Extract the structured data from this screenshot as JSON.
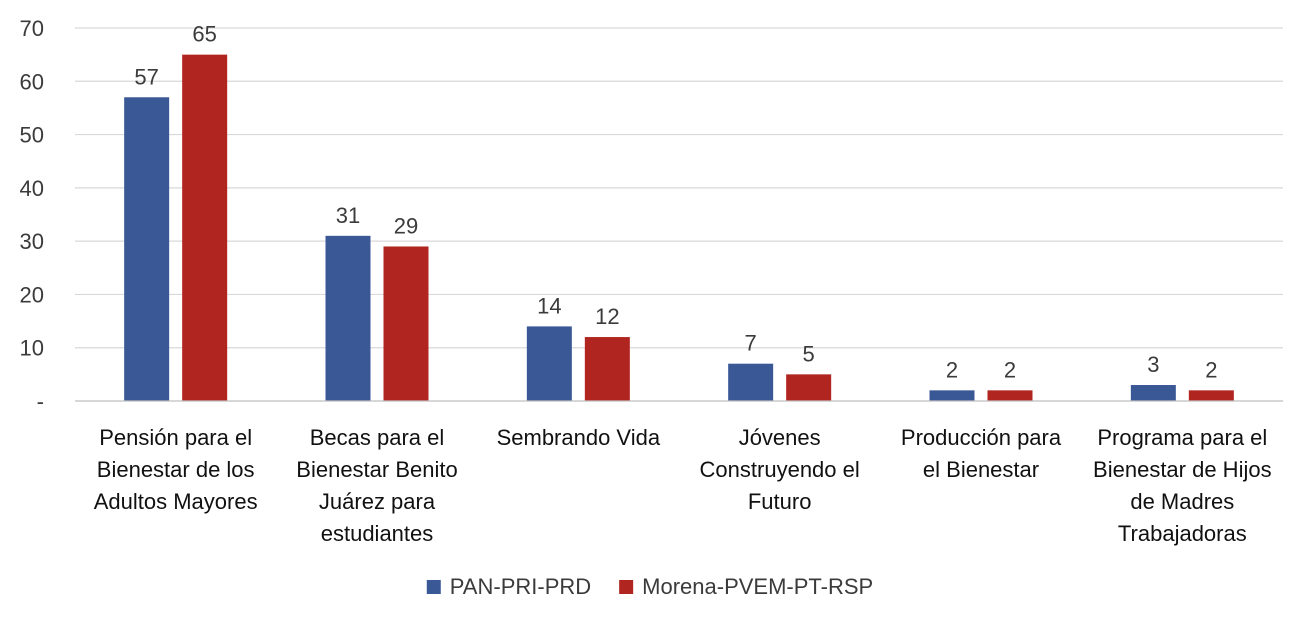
{
  "chart_data": {
    "type": "bar",
    "categories": [
      [
        "Pensión para el",
        "Bienestar de los",
        "Adultos Mayores"
      ],
      [
        "Becas para el",
        "Bienestar Benito",
        "Juárez para",
        "estudiantes"
      ],
      [
        "Sembrando Vida"
      ],
      [
        "Jóvenes",
        "Construyendo el",
        "Futuro"
      ],
      [
        "Producción para",
        "el Bienestar"
      ],
      [
        "Programa para el",
        "Bienestar de Hijos",
        "de Madres",
        "Trabajadoras"
      ]
    ],
    "series": [
      {
        "name": "PAN-PRI-PRD",
        "color": "#3a5896",
        "values": [
          57,
          31,
          14,
          7,
          2,
          3
        ],
        "display_labels": [
          "57",
          "31",
          "14",
          "7",
          "2",
          "3"
        ]
      },
      {
        "name": "Morena-PVEM-PT-RSP",
        "color": "#b0251f",
        "values": [
          65,
          29,
          12,
          5,
          2,
          2
        ],
        "display_labels": [
          "65",
          "29",
          "12",
          "5",
          "2",
          "2"
        ]
      }
    ],
    "ylim": [
      0,
      70
    ],
    "yticks": [
      0,
      10,
      20,
      30,
      40,
      50,
      60,
      70
    ],
    "ytick_labels": [
      "-",
      "10",
      "20",
      "30",
      "40",
      "50",
      "60",
      "70"
    ],
    "title": "",
    "xlabel": "",
    "ylabel": "",
    "grid": true,
    "legend_position": "bottom"
  }
}
